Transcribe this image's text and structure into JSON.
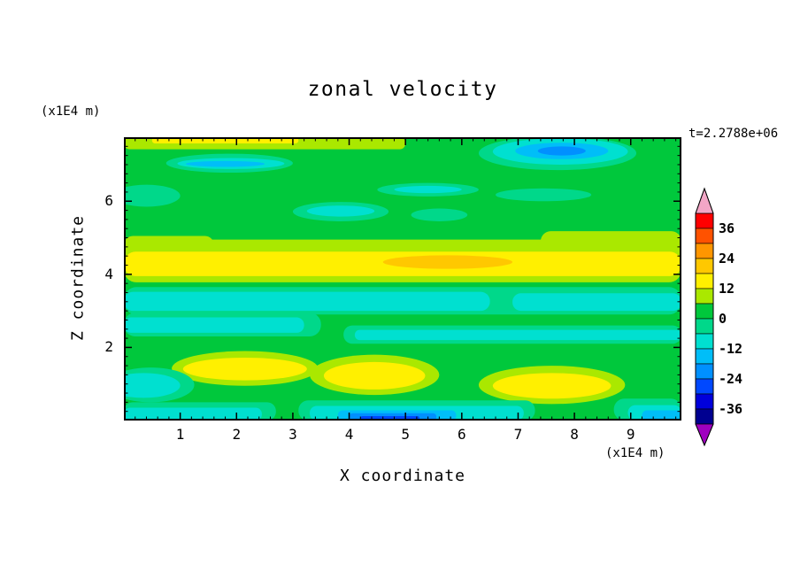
{
  "title": "zonal velocity",
  "timestamp": "t=2.2788e+06",
  "axes": {
    "x_label": "X coordinate",
    "x_unit": "(x1E4 m)",
    "y_label": "Z coordinate",
    "y_unit": "(x1E4 m)",
    "x_ticks": [
      "1",
      "2",
      "3",
      "4",
      "5",
      "6",
      "7",
      "8",
      "9"
    ],
    "y_ticks": [
      "2",
      "4",
      "6"
    ]
  },
  "colorbar": {
    "labels": [
      "36",
      "24",
      "12",
      "0",
      "-12",
      "-24",
      "-36"
    ],
    "colors": [
      "#F2A6C6",
      "#FF0000",
      "#FF5200",
      "#FF9600",
      "#FFC800",
      "#FFF000",
      "#AAE800",
      "#00C83C",
      "#00D88A",
      "#00E0D0",
      "#00BEF8",
      "#0090FF",
      "#0048FF",
      "#0000DC",
      "#000090",
      "#A000C0"
    ]
  },
  "chart_data": {
    "type": "heatmap",
    "title": "zonal velocity",
    "xlabel": "X coordinate (x1E4 m)",
    "ylabel": "Z coordinate (x1E4 m)",
    "time_label": "t=2.2788e+06",
    "xlim": [
      0,
      9.9
    ],
    "ylim": [
      0,
      7.75
    ],
    "levels": [
      42,
      36,
      30,
      24,
      18,
      12,
      6,
      0,
      -6,
      -12,
      -18,
      -24,
      -30,
      -36,
      -42
    ],
    "colorbar_label_values": [
      36,
      24,
      12,
      0,
      -12,
      -24,
      -36
    ],
    "legend_position": "right-colorbar",
    "grid": false,
    "background_value": 3,
    "field_shapes": [
      {
        "k": "band",
        "x0": 0,
        "z0": 7.42,
        "x1": 5.0,
        "z1": 7.75,
        "v": 9
      },
      {
        "k": "band",
        "x0": 0.5,
        "z0": 7.58,
        "x1": 3.1,
        "z1": 7.75,
        "v": 15
      },
      {
        "k": "blob",
        "x0": 6.3,
        "z0": 6.85,
        "x1": 9.1,
        "z1": 7.78,
        "v": -3
      },
      {
        "k": "blob",
        "x0": 6.55,
        "z0": 7.0,
        "x1": 8.95,
        "z1": 7.72,
        "v": -9
      },
      {
        "k": "blob",
        "x0": 6.95,
        "z0": 7.15,
        "x1": 8.6,
        "z1": 7.6,
        "v": -15
      },
      {
        "k": "blob",
        "x0": 7.35,
        "z0": 7.25,
        "x1": 8.2,
        "z1": 7.5,
        "v": -21
      },
      {
        "k": "blob",
        "x0": 0.75,
        "z0": 6.78,
        "x1": 3.0,
        "z1": 7.3,
        "v": -3
      },
      {
        "k": "blob",
        "x0": 0.95,
        "z0": 6.88,
        "x1": 2.85,
        "z1": 7.18,
        "v": -9
      },
      {
        "k": "blob",
        "x0": 1.1,
        "z0": 6.94,
        "x1": 2.5,
        "z1": 7.1,
        "v": -15
      },
      {
        "k": "blob",
        "x0": 3.0,
        "z0": 5.45,
        "x1": 4.7,
        "z1": 5.98,
        "v": -3
      },
      {
        "k": "blob",
        "x0": 3.25,
        "z0": 5.58,
        "x1": 4.45,
        "z1": 5.88,
        "v": -9
      },
      {
        "k": "blob",
        "x0": 5.1,
        "z0": 5.45,
        "x1": 6.1,
        "z1": 5.8,
        "v": -3
      },
      {
        "k": "blob",
        "x0": 4.5,
        "z0": 6.13,
        "x1": 6.3,
        "z1": 6.5,
        "v": -3
      },
      {
        "k": "blob",
        "x0": 4.8,
        "z0": 6.22,
        "x1": 6.0,
        "z1": 6.42,
        "v": -9
      },
      {
        "k": "blob",
        "x0": -0.2,
        "z0": 5.85,
        "x1": 1.0,
        "z1": 6.45,
        "v": -3
      },
      {
        "k": "blob",
        "x0": 6.6,
        "z0": 6.0,
        "x1": 8.3,
        "z1": 6.35,
        "v": -3
      },
      {
        "k": "band",
        "x0": 0,
        "z0": 3.78,
        "x1": 9.9,
        "z1": 4.95,
        "v": 9
      },
      {
        "k": "band",
        "x0": 0,
        "z0": 4.53,
        "x1": 1.6,
        "z1": 5.05,
        "v": 9
      },
      {
        "k": "band",
        "x0": 7.4,
        "z0": 4.6,
        "x1": 9.9,
        "z1": 5.18,
        "v": 9
      },
      {
        "k": "band",
        "x0": 0,
        "z0": 3.95,
        "x1": 9.9,
        "z1": 4.62,
        "v": 15
      },
      {
        "k": "blob",
        "x0": 4.6,
        "z0": 4.15,
        "x1": 6.9,
        "z1": 4.52,
        "v": 21
      },
      {
        "k": "band",
        "x0": 0,
        "z0": 2.9,
        "x1": 9.9,
        "z1": 3.65,
        "v": -3
      },
      {
        "k": "band",
        "x0": 0,
        "z0": 3.0,
        "x1": 6.5,
        "z1": 3.52,
        "v": -9
      },
      {
        "k": "band",
        "x0": 6.9,
        "z0": 3.0,
        "x1": 9.9,
        "z1": 3.48,
        "v": -9
      },
      {
        "k": "band",
        "x0": 0,
        "z0": 2.3,
        "x1": 3.5,
        "z1": 2.95,
        "v": -3
      },
      {
        "k": "band",
        "x0": 0,
        "z0": 2.4,
        "x1": 3.2,
        "z1": 2.82,
        "v": -9
      },
      {
        "k": "band",
        "x0": 3.9,
        "z0": 2.1,
        "x1": 9.9,
        "z1": 2.6,
        "v": -3
      },
      {
        "k": "band",
        "x0": 4.1,
        "z0": 2.2,
        "x1": 9.9,
        "z1": 2.48,
        "v": -9
      },
      {
        "k": "blob",
        "x0": 0.85,
        "z0": 0.95,
        "x1": 3.45,
        "z1": 1.9,
        "v": 9
      },
      {
        "k": "blob",
        "x0": 1.05,
        "z0": 1.1,
        "x1": 3.25,
        "z1": 1.72,
        "v": 15
      },
      {
        "k": "blob",
        "x0": 3.3,
        "z0": 0.7,
        "x1": 5.6,
        "z1": 1.8,
        "v": 9
      },
      {
        "k": "blob",
        "x0": 3.55,
        "z0": 0.85,
        "x1": 5.35,
        "z1": 1.6,
        "v": 15
      },
      {
        "k": "blob",
        "x0": 6.3,
        "z0": 0.45,
        "x1": 8.9,
        "z1": 1.5,
        "v": 9
      },
      {
        "k": "blob",
        "x0": 6.55,
        "z0": 0.6,
        "x1": 8.65,
        "z1": 1.3,
        "v": 15
      },
      {
        "k": "blob",
        "x0": -0.3,
        "z0": 0.5,
        "x1": 1.25,
        "z1": 1.45,
        "v": -3
      },
      {
        "k": "blob",
        "x0": -0.3,
        "z0": 0.62,
        "x1": 1.0,
        "z1": 1.3,
        "v": -9
      },
      {
        "k": "band",
        "x0": 0,
        "z0": 0,
        "x1": 2.7,
        "z1": 0.5,
        "v": -3
      },
      {
        "k": "band",
        "x0": 0,
        "z0": 0,
        "x1": 2.45,
        "z1": 0.35,
        "v": -9
      },
      {
        "k": "band",
        "x0": 3.1,
        "z0": 0,
        "x1": 7.3,
        "z1": 0.55,
        "v": -3
      },
      {
        "k": "band",
        "x0": 3.3,
        "z0": 0,
        "x1": 7.1,
        "z1": 0.4,
        "v": -9
      },
      {
        "k": "band",
        "x0": 3.8,
        "z0": 0,
        "x1": 5.9,
        "z1": 0.28,
        "v": -15
      },
      {
        "k": "band",
        "x0": 4.0,
        "z0": 0,
        "x1": 5.55,
        "z1": 0.2,
        "v": -21
      },
      {
        "k": "band",
        "x0": 4.2,
        "z0": 0,
        "x1": 5.25,
        "z1": 0.12,
        "v": -27
      },
      {
        "k": "band",
        "x0": 8.7,
        "z0": 0,
        "x1": 9.9,
        "z1": 0.6,
        "v": -3
      },
      {
        "k": "band",
        "x0": 8.95,
        "z0": 0,
        "x1": 9.9,
        "z1": 0.42,
        "v": -9
      },
      {
        "k": "band",
        "x0": 9.2,
        "z0": 0,
        "x1": 9.9,
        "z1": 0.28,
        "v": -15
      }
    ]
  }
}
